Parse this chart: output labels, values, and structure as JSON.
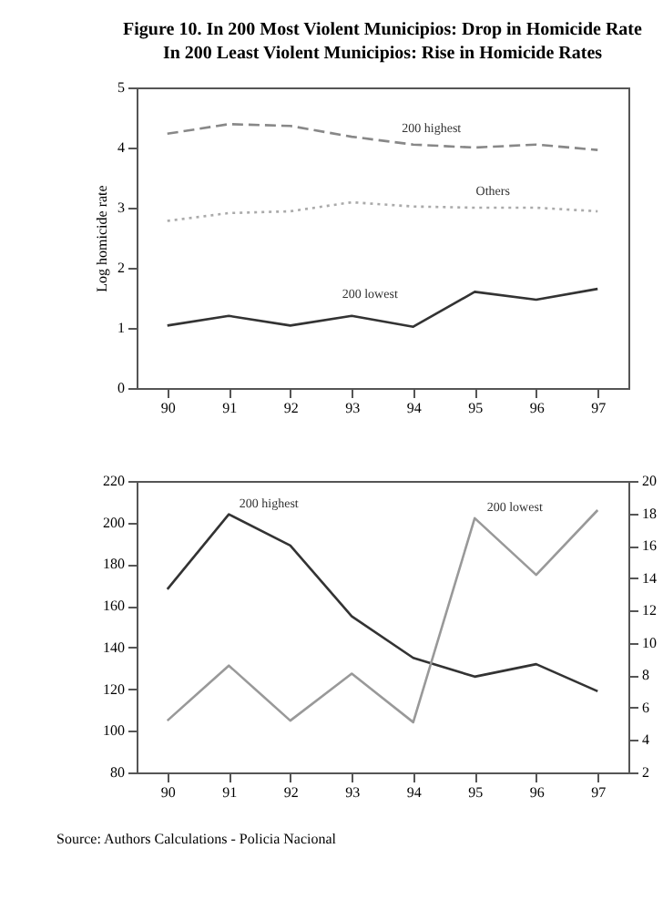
{
  "chart_data": [
    {
      "type": "line",
      "title": "Figure 10. In 200 Most Violent Municipios: Drop in Homicide Rate",
      "subtitle": "In 200 Least Violent Municipios: Rise in Homicide Rates",
      "ylabel": "Log homicide rate",
      "categories": [
        "90",
        "91",
        "92",
        "93",
        "94",
        "95",
        "96",
        "97"
      ],
      "ylim": [
        0,
        5
      ],
      "yticks": [
        0,
        1,
        2,
        3,
        4,
        5
      ],
      "series": [
        {
          "name": "200 highest",
          "color": "#888888",
          "line_style": "dashed",
          "values": [
            4.23,
            4.39,
            4.36,
            4.18,
            4.05,
            4.0,
            4.05,
            3.96
          ]
        },
        {
          "name": "Others",
          "color": "#aaaaaa",
          "line_style": "dotted",
          "values": [
            2.78,
            2.91,
            2.94,
            3.09,
            3.02,
            3.0,
            3.0,
            2.94
          ]
        },
        {
          "name": "200 lowest",
          "color": "#333333",
          "line_style": "solid",
          "values": [
            1.04,
            1.2,
            1.04,
            1.2,
            1.02,
            1.6,
            1.47,
            1.65
          ]
        }
      ]
    },
    {
      "type": "line",
      "categories": [
        "90",
        "91",
        "92",
        "93",
        "94",
        "95",
        "96",
        "97"
      ],
      "ylim": [
        80,
        220
      ],
      "yticks": [
        80,
        100,
        120,
        140,
        160,
        180,
        200,
        220
      ],
      "y2lim": [
        2,
        20
      ],
      "y2ticks": [
        2,
        4,
        6,
        8,
        10,
        12,
        14,
        16,
        18,
        20
      ],
      "annotations": [
        "Source: Authors Calculations - Policia Nacional"
      ],
      "series": [
        {
          "name": "200 highest",
          "color": "#333333",
          "line_style": "solid",
          "values": [
            168,
            204,
            189,
            155,
            135,
            126,
            132,
            119
          ]
        },
        {
          "name": "200 lowest",
          "color": "#999999",
          "line_style": "solid",
          "axis": "y2",
          "values": [
            5.2,
            8.6,
            5.2,
            8.1,
            5.1,
            17.7,
            14.2,
            18.2
          ]
        }
      ]
    }
  ]
}
